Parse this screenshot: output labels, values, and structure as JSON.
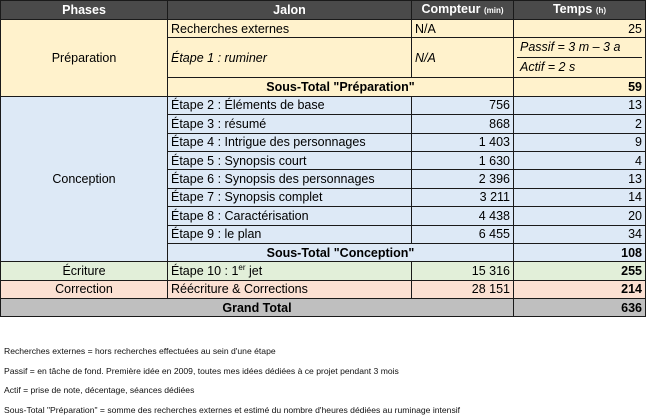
{
  "headers": {
    "phases": "Phases",
    "jalon": "Jalon",
    "compteur": "Compteur",
    "compteur_unit": "(min)",
    "temps": "Temps",
    "temps_unit": "(h)"
  },
  "preparation": {
    "phase": "Préparation",
    "rows": [
      {
        "jalon": "Recherches externes",
        "compteur": "N/A",
        "temps": "25"
      },
      {
        "jalon": "Étape 1 : ruminer",
        "compteur": "N/A",
        "passif": "Passif = 3 m – 3 a",
        "actif": "Actif =  2 s"
      }
    ],
    "subtotal_label": "Sous-Total \"Préparation\"",
    "subtotal_value": "59"
  },
  "conception": {
    "phase": "Conception",
    "rows": [
      {
        "jalon": "Étape 2 : Éléments de base",
        "compteur": "756",
        "temps": "13"
      },
      {
        "jalon": "Étape 3 : résumé",
        "compteur": "868",
        "temps": "2"
      },
      {
        "jalon": "Étape 4 : Intrigue des personnages",
        "compteur": "1 403",
        "temps": "9"
      },
      {
        "jalon": "Étape 5 : Synopsis court",
        "compteur": "1 630",
        "temps": "4"
      },
      {
        "jalon": "Étape 6 : Synopsis des personnages",
        "compteur": "2 396",
        "temps": "13"
      },
      {
        "jalon": "Étape 7 : Synopsis complet",
        "compteur": "3 211",
        "temps": "14"
      },
      {
        "jalon": "Étape 8 : Caractérisation",
        "compteur": "4 438",
        "temps": "20"
      },
      {
        "jalon": "Étape 9 : le plan",
        "compteur": "6 455",
        "temps": "34"
      }
    ],
    "subtotal_label": "Sous-Total \"Conception\"",
    "subtotal_value": "108"
  },
  "ecriture": {
    "phase": "Écriture",
    "jalon_prefix": "Étape 10 : 1",
    "jalon_sup": "er",
    "jalon_suffix": " jet",
    "compteur": "15 316",
    "temps": "255"
  },
  "correction": {
    "phase": "Correction",
    "jalon": "Réécriture & Corrections",
    "compteur": "28 151",
    "temps": "214"
  },
  "grand_total": {
    "label": "Grand Total",
    "value": "636"
  },
  "notes": [
    "Recherches externes = hors recherches effectuées au sein d'une étape",
    "Passif = en tâche de fond. Première idée en 2009, toutes mes idées dédiées à ce projet pendant 3 mois",
    "Actif = prise de note, décentage, séances dédiées",
    "Sous-Total \"Préparation\" = somme des recherches externes et estimé du nombre d'heures dédiées au ruminage intensif"
  ]
}
